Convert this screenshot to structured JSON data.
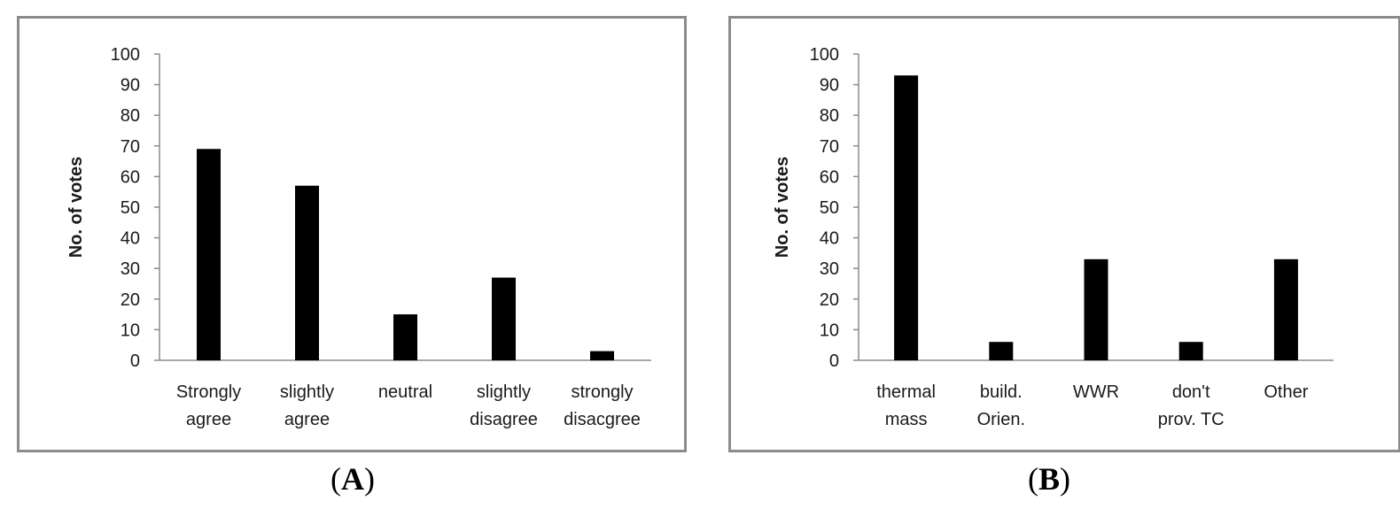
{
  "chart_data": [
    {
      "type": "bar",
      "categories": [
        [
          "Strongly",
          "agree"
        ],
        [
          "slightly",
          "agree"
        ],
        [
          "neutral"
        ],
        [
          "slightly",
          "disagree"
        ],
        [
          "strongly",
          "disacgree"
        ]
      ],
      "values": [
        69,
        57,
        15,
        27,
        3
      ],
      "ylabel": "No. of votes",
      "ylim": [
        0,
        100
      ],
      "yticks": [
        0,
        10,
        20,
        30,
        40,
        50,
        60,
        70,
        80,
        90,
        100
      ],
      "grid": false,
      "bar_color": "#000000",
      "caption": "A"
    },
    {
      "type": "bar",
      "categories": [
        [
          "thermal",
          "mass"
        ],
        [
          "build.",
          "Orien."
        ],
        [
          "WWR"
        ],
        [
          "don't",
          "prov. TC"
        ],
        [
          "Other"
        ]
      ],
      "values": [
        93,
        6,
        33,
        6,
        33
      ],
      "ylabel": "No. of votes",
      "ylim": [
        0,
        100
      ],
      "yticks": [
        0,
        10,
        20,
        30,
        40,
        50,
        60,
        70,
        80,
        90,
        100
      ],
      "grid": false,
      "bar_color": "#000000",
      "caption": "B"
    }
  ]
}
